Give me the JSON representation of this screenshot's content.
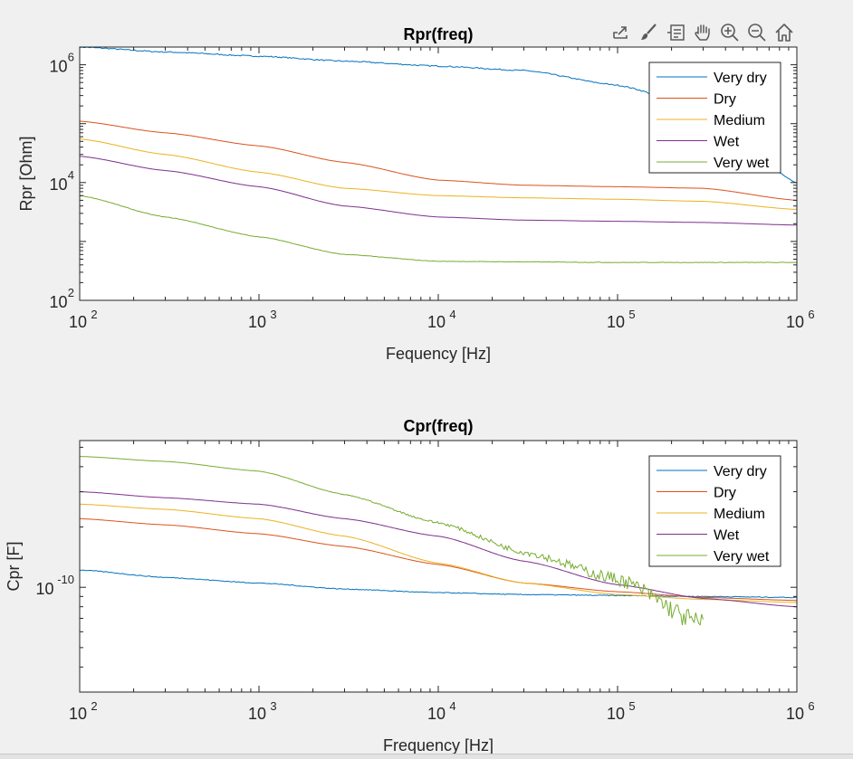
{
  "figure": {
    "background": "#f0f0f0"
  },
  "toolbar": {
    "buttons": [
      {
        "name": "export-icon"
      },
      {
        "name": "brush-icon"
      },
      {
        "name": "datatip-icon"
      },
      {
        "name": "pan-hand-icon"
      },
      {
        "name": "zoom-in-icon"
      },
      {
        "name": "zoom-out-icon"
      },
      {
        "name": "home-icon"
      }
    ]
  },
  "chart_data": [
    {
      "type": "line",
      "title": "Rpr(freq)",
      "xlabel": "Fequency [Hz]",
      "ylabel": "Rpr [Ohm]",
      "xscale": "log",
      "yscale": "log",
      "xlim": [
        100,
        1000000
      ],
      "ylim": [
        100,
        2000000
      ],
      "xticks": [
        100,
        1000,
        10000,
        100000,
        1000000
      ],
      "xtick_labels": [
        {
          "base": "10",
          "exp": "2"
        },
        {
          "base": "10",
          "exp": "3"
        },
        {
          "base": "10",
          "exp": "4"
        },
        {
          "base": "10",
          "exp": "5"
        },
        {
          "base": "10",
          "exp": "6"
        }
      ],
      "yticks": [
        100,
        10000,
        1000000
      ],
      "ytick_labels": [
        {
          "base": "10",
          "exp": "2"
        },
        {
          "base": "10",
          "exp": "4"
        },
        {
          "base": "10",
          "exp": "6"
        }
      ],
      "grid": false,
      "legend": "top-right",
      "x": [
        100,
        300,
        1000,
        3000,
        10000,
        30000,
        100000,
        300000,
        1000000
      ],
      "series": [
        {
          "name": "Very dry",
          "color": "#0072bd",
          "noise": 0.02,
          "values": [
            2000000,
            1650000,
            1400000,
            1150000,
            950000,
            800000,
            450000,
            180000,
            10000
          ]
        },
        {
          "name": "Dry",
          "color": "#d95319",
          "noise": 0,
          "values": [
            110000,
            70000,
            42000,
            22000,
            11000,
            9000,
            8500,
            8000,
            5000
          ]
        },
        {
          "name": "Medium",
          "color": "#edb120",
          "noise": 0,
          "values": [
            55000,
            30000,
            15000,
            8000,
            6000,
            5500,
            5200,
            4800,
            3500
          ]
        },
        {
          "name": "Wet",
          "color": "#7e2f8e",
          "noise": 0,
          "values": [
            28000,
            16000,
            8500,
            4000,
            2600,
            2300,
            2200,
            2100,
            1900
          ]
        },
        {
          "name": "Very wet",
          "color": "#77ac30",
          "noise": 0.008,
          "values": [
            6000,
            2600,
            1200,
            600,
            460,
            450,
            440,
            440,
            440
          ]
        }
      ]
    },
    {
      "type": "line",
      "title": "Cpr(freq)",
      "xlabel": "Frequency [Hz]",
      "ylabel": "Cpr [F]",
      "xscale": "log",
      "yscale": "log",
      "xlim": [
        100,
        1000000
      ],
      "ylim": [
        3e-11,
        5.4e-10
      ],
      "xticks": [
        100,
        1000,
        10000,
        100000,
        1000000
      ],
      "xtick_labels": [
        {
          "base": "10",
          "exp": "2"
        },
        {
          "base": "10",
          "exp": "3"
        },
        {
          "base": "10",
          "exp": "4"
        },
        {
          "base": "10",
          "exp": "5"
        },
        {
          "base": "10",
          "exp": "6"
        }
      ],
      "yticks": [
        1e-10
      ],
      "ytick_labels": [
        {
          "base": "10",
          "exp": "-10"
        }
      ],
      "grid": false,
      "legend": "top-right",
      "x": [
        100,
        300,
        1000,
        3000,
        10000,
        30000,
        100000,
        300000,
        1000000
      ],
      "series": [
        {
          "name": "Very dry",
          "color": "#0072bd",
          "noise": 0.004,
          "values": [
            1.22e-10,
            1.12e-10,
            1.05e-10,
            9.8e-11,
            9.4e-11,
            9.2e-11,
            9.1e-11,
            9e-11,
            8.9e-11
          ]
        },
        {
          "name": "Dry",
          "color": "#d95319",
          "noise": 0,
          "values": [
            2.2e-10,
            2.05e-10,
            1.85e-10,
            1.6e-10,
            1.3e-10,
            1.05e-10,
            9.5e-11,
            8.9e-11,
            8.6e-11
          ]
        },
        {
          "name": "Medium",
          "color": "#edb120",
          "noise": 0,
          "values": [
            2.6e-10,
            2.45e-10,
            2.2e-10,
            1.8e-10,
            1.32e-10,
            1.05e-10,
            9.2e-11,
            8.7e-11,
            8.4e-11
          ]
        },
        {
          "name": "Wet",
          "color": "#7e2f8e",
          "noise": 0,
          "values": [
            3e-10,
            2.8e-10,
            2.6e-10,
            2.2e-10,
            1.8e-10,
            1.35e-10,
            1.03e-10,
            8.8e-11,
            8e-11
          ]
        },
        {
          "name": "Very wet",
          "color": "#77ac30",
          "noise": 0.02,
          "values": [
            4.5e-10,
            4.25e-10,
            3.8e-10,
            2.9e-10,
            2.1e-10,
            1.5e-10,
            1.1e-10,
            6.5e-11,
            null
          ]
        }
      ]
    }
  ]
}
